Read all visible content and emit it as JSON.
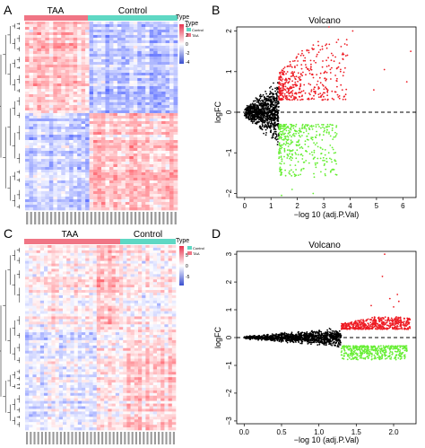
{
  "panels": {
    "A": {
      "letter": "A",
      "group_labels": [
        "TAA",
        "Control"
      ],
      "group_colors": {
        "TAA": "#f07585",
        "Control": "#5fd8c4"
      },
      "legend": {
        "title": "Type",
        "items": [
          "Control",
          "TAA"
        ],
        "scale_ticks": [
          "4",
          "2",
          "0",
          "-2",
          "-4"
        ]
      }
    },
    "B": {
      "letter": "B",
      "title": "Volcano",
      "xlabel": "−log 10 (adj.P.Val)",
      "ylabel": "logFC",
      "xticks": [
        "0",
        "1",
        "2",
        "3",
        "4",
        "5",
        "6"
      ],
      "yticks": [
        "2",
        "1",
        "0",
        "−1",
        "−2"
      ]
    },
    "C": {
      "letter": "C",
      "group_labels": [
        "TAA",
        "Control"
      ],
      "group_colors": {
        "TAA": "#f07585",
        "Control": "#5fd8c4"
      },
      "legend": {
        "title": "Type",
        "items": [
          "Control",
          "TAA"
        ],
        "scale_ticks": [
          "5",
          "0",
          "-5"
        ]
      }
    },
    "D": {
      "letter": "D",
      "title": "Volcano",
      "xlabel": "−log 10 (adj.P.Val)",
      "ylabel": "logFC",
      "xticks": [
        "0.0",
        "0.5",
        "1.0",
        "1.5",
        "2.0"
      ],
      "yticks": [
        "3",
        "2",
        "1",
        "0",
        "−1",
        "−2",
        "−3"
      ]
    }
  },
  "colors": {
    "up": "#ee1c24",
    "down": "#66ee33",
    "ns": "#000000",
    "heat_high": "#e8324e",
    "heat_low": "#3a4fd0",
    "heat_mid": "#ffffff"
  },
  "chart_data": [
    {
      "type": "heatmap",
      "panel": "A",
      "groups": [
        "TAA",
        "Control"
      ],
      "legend": [
        "Control",
        "TAA"
      ],
      "scale_range": [
        -4,
        4
      ]
    },
    {
      "type": "scatter",
      "panel": "B",
      "title": "Volcano",
      "xlabel": "−log 10 (adj.P.Val)",
      "ylabel": "logFC",
      "xlim": [
        -0.3,
        6.5
      ],
      "ylim": [
        -2.1,
        2.1
      ],
      "threshold_line_y": 0,
      "significance_x": 1.3,
      "series": [
        {
          "color": "#ee1c24",
          "x_range": [
            1.3,
            6.2
          ],
          "y_range": [
            0.3,
            2.1
          ]
        },
        {
          "color": "#66ee33",
          "x_range": [
            1.3,
            4.6
          ],
          "y_range": [
            -2.0,
            -0.3
          ]
        },
        {
          "color": "#000000",
          "x_range": [
            0,
            1.3
          ],
          "y_range": [
            -1.0,
            1.0
          ]
        }
      ]
    },
    {
      "type": "heatmap",
      "panel": "C",
      "groups": [
        "TAA",
        "Control"
      ],
      "legend": [
        "Control",
        "TAA"
      ],
      "scale_range": [
        -5,
        5
      ]
    },
    {
      "type": "scatter",
      "panel": "D",
      "title": "Volcano",
      "xlabel": "−log 10 (adj.P.Val)",
      "ylabel": "logFC",
      "xlim": [
        -0.1,
        2.3
      ],
      "ylim": [
        -3.1,
        3.1
      ],
      "threshold_line_y": 0,
      "significance_x": 1.3,
      "series": [
        {
          "color": "#ee1c24",
          "x_range": [
            1.3,
            2.25
          ],
          "y_range": [
            0.3,
            3.0
          ]
        },
        {
          "color": "#66ee33",
          "x_range": [
            1.3,
            2.2
          ],
          "y_range": [
            -0.85,
            -0.3
          ]
        },
        {
          "color": "#000000",
          "x_range": [
            0,
            1.3
          ],
          "y_range": [
            -0.45,
            0.45
          ]
        }
      ]
    }
  ]
}
